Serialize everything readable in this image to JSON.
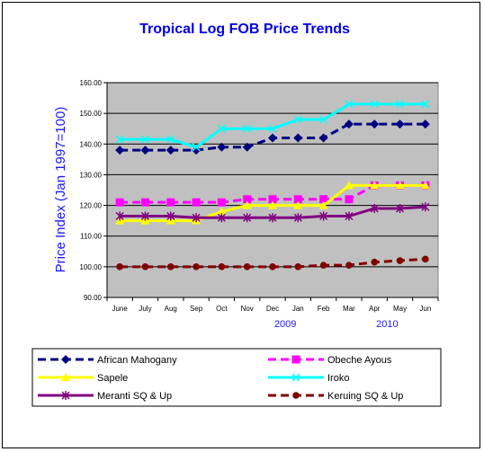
{
  "chart_data": {
    "type": "line",
    "title": "Tropical Log FOB Price Trends",
    "ylabel": "Price Index (Jan 1997=100)",
    "xlabel": "",
    "categories": [
      "June",
      "July",
      "Aug",
      "Sep",
      "Oct",
      "Nov",
      "Dec",
      "Jan",
      "Feb",
      "Mar",
      "Apr",
      "May",
      "Jun"
    ],
    "year_labels": [
      {
        "text": "2009",
        "at": 6.5
      },
      {
        "text": "2010",
        "at": 10.5
      }
    ],
    "ylim": [
      90,
      160
    ],
    "yticks": [
      "90.00",
      "100.00",
      "110.00",
      "120.00",
      "130.00",
      "140.00",
      "150.00",
      "160.00"
    ],
    "grid": true,
    "legend_position": "bottom",
    "plot_bg": "#c0c0c0",
    "series": [
      {
        "name": "African Mahogany",
        "color": "#000080",
        "marker": "diamond",
        "dash": "dash",
        "values": [
          138,
          138,
          138,
          138,
          139,
          139,
          142,
          142,
          142,
          146.5,
          146.5,
          146.5,
          146.5
        ]
      },
      {
        "name": "Obeche Ayous",
        "color": "#ff00ff",
        "marker": "square",
        "dash": "dash",
        "values": [
          121,
          121,
          121,
          121,
          121,
          122,
          122,
          122,
          122,
          122,
          126.5,
          126.5,
          126.5
        ]
      },
      {
        "name": "Sapele",
        "color": "#ffff00",
        "marker": "triangle",
        "dash": "solid",
        "values": [
          115,
          115,
          115,
          115,
          118,
          120,
          120,
          120,
          120,
          126.5,
          126.5,
          126.5,
          126.5
        ]
      },
      {
        "name": "Iroko",
        "color": "#00ffff",
        "marker": "x",
        "dash": "solid",
        "values": [
          141.5,
          141.5,
          141.5,
          139,
          145,
          145,
          145,
          148,
          148,
          153,
          153,
          153,
          153
        ]
      },
      {
        "name": "Meranti SQ & Up",
        "color": "#800080",
        "marker": "star",
        "dash": "solid",
        "values": [
          116.5,
          116.5,
          116.5,
          116,
          116,
          116,
          116,
          116,
          116.5,
          116.5,
          119,
          119,
          119.5
        ]
      },
      {
        "name": "Keruing SQ & Up",
        "color": "#800000",
        "marker": "circle",
        "dash": "dash",
        "values": [
          100,
          100,
          100,
          100,
          100,
          100,
          100,
          100,
          100.5,
          100.5,
          101.5,
          102,
          102.5
        ]
      }
    ]
  }
}
